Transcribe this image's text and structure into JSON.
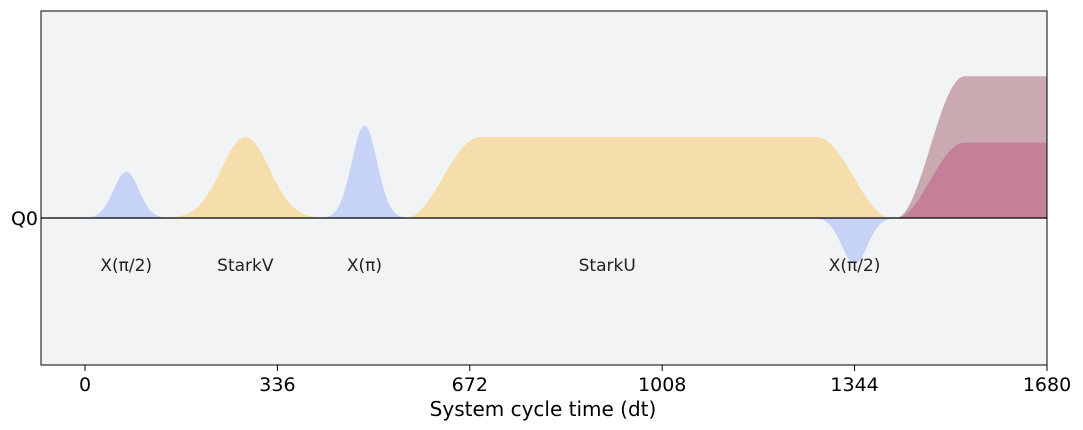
{
  "chart_data": {
    "type": "area",
    "title": "",
    "xlabel": "System cycle time (dt)",
    "ylabel": "",
    "channel": "Q0",
    "xlim": [
      -80,
      1680
    ],
    "ylim": [
      -1.6,
      2.25
    ],
    "xticks": [
      0,
      336,
      672,
      1008,
      1344,
      1680
    ],
    "grid": false,
    "background": "#f2f3f5",
    "colors": {
      "x_pulse": "#c6d3f6",
      "stark": "#f5deab",
      "readout_upper": "#cba9b0",
      "readout_lower": "#c47f99"
    },
    "pulses": [
      {
        "label": "X(π/2)",
        "kind": "gaussian",
        "series": "x_pulse",
        "start": 0,
        "end": 144,
        "amp": 0.57,
        "label_x": 72
      },
      {
        "label": "StarkV",
        "kind": "gaussian",
        "series": "stark",
        "start": 144,
        "end": 416,
        "amp": 1.0,
        "label_x": 280
      },
      {
        "label": "X(π)",
        "kind": "gaussian",
        "series": "x_pulse",
        "start": 416,
        "end": 560,
        "amp": 1.14,
        "label_x": 488
      },
      {
        "label": "StarkU",
        "kind": "flattop",
        "series": "stark",
        "start": 560,
        "end": 1408,
        "amp": 1.0,
        "rise": 130,
        "label_x": 912
      },
      {
        "label": "X(π/2)",
        "kind": "gaussian",
        "series": "x_pulse",
        "start": 1272,
        "end": 1416,
        "amp": -0.57,
        "label_x": 1344
      },
      {
        "label": "",
        "kind": "flattop",
        "series": "readout_upper",
        "start": 1416,
        "end": 1880,
        "amp": 1.75,
        "rise": 120
      },
      {
        "label": "",
        "kind": "flattop",
        "series": "readout_lower",
        "start": 1416,
        "end": 1880,
        "amp": 0.93,
        "rise": 120
      }
    ]
  }
}
